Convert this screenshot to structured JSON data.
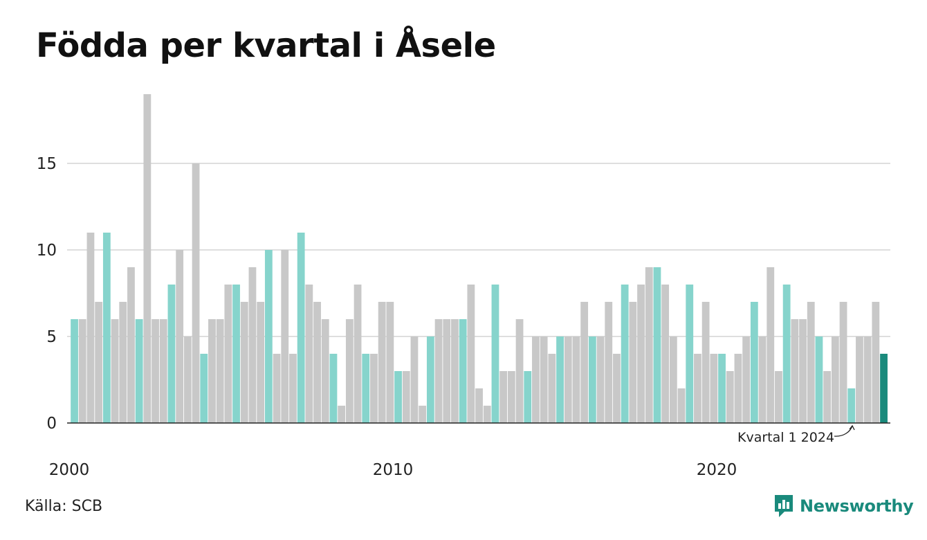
{
  "title": "Födda per kvartal i Åsele",
  "source": "Källa: SCB",
  "brand": {
    "name": "Newsworthy",
    "logo_icon": "newsworthy-logo-icon",
    "color": "#1a8a7c"
  },
  "colors": {
    "bar_default": "#c8c8c8",
    "bar_q1": "#86d4cc",
    "bar_latest": "#1a8a7c",
    "grid": "#dedede",
    "baseline": "#222222"
  },
  "chart_data": {
    "type": "bar",
    "title": "Födda per kvartal i Åsele",
    "xlabel": "",
    "ylabel": "",
    "ylim": [
      0,
      19
    ],
    "yticks": [
      0,
      5,
      10,
      15
    ],
    "xtick_labels": [
      {
        "label": "2000",
        "year": 2000
      },
      {
        "label": "2010",
        "year": 2010
      },
      {
        "label": "2020",
        "year": 2020
      }
    ],
    "start": {
      "year": 2000,
      "quarter": 1
    },
    "highlight": "first quarter of each year; latest quarter darker",
    "values": [
      6,
      6,
      11,
      7,
      11,
      6,
      7,
      9,
      6,
      19,
      6,
      6,
      8,
      10,
      5,
      15,
      4,
      6,
      6,
      8,
      8,
      7,
      9,
      7,
      10,
      4,
      10,
      4,
      11,
      8,
      7,
      6,
      4,
      1,
      6,
      8,
      4,
      4,
      7,
      7,
      3,
      3,
      5,
      1,
      5,
      6,
      6,
      6,
      6,
      8,
      2,
      1,
      8,
      3,
      3,
      6,
      3,
      5,
      5,
      4,
      5,
      5,
      5,
      7,
      5,
      5,
      7,
      4,
      8,
      7,
      8,
      9,
      9,
      8,
      5,
      2,
      8,
      4,
      7,
      4,
      4,
      3,
      4,
      5,
      7,
      5,
      9,
      3,
      8,
      6,
      6,
      7,
      5,
      3,
      5,
      7,
      2,
      5,
      5,
      7,
      4
    ],
    "annotation": {
      "label": "Kvartal 1 2024",
      "year": 2024,
      "quarter": 1
    },
    "grid": true
  }
}
